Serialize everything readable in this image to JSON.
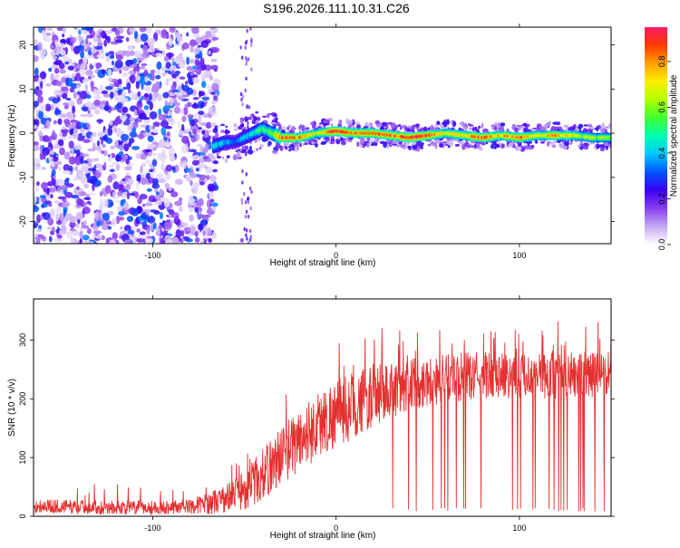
{
  "title": "S196.2026.111.10.31.C26",
  "chart_data": [
    {
      "type": "heatmap",
      "name": "spectrogram",
      "title": "S196.2026.111.10.31.C26",
      "xlabel": "Height of straight line (km)",
      "ylabel": "Frequency (Hz)",
      "xlim": [
        -165,
        150
      ],
      "ylim": [
        -25,
        24
      ],
      "xticks": [
        -100,
        0,
        100
      ],
      "yticks": [
        -20,
        -10,
        0,
        10,
        20
      ],
      "colorbar": {
        "label": "Normalized spectral amplitude",
        "range": [
          0,
          0.95
        ],
        "ticks": [
          0.0,
          0.2,
          0.4,
          0.6,
          0.8
        ],
        "colors": [
          "#ffffff",
          "#c6a8f2",
          "#8a3ff0",
          "#3b00f5",
          "#0055ff",
          "#00c8ff",
          "#00ffb0",
          "#40ff30",
          "#b0ff00",
          "#ffee00",
          "#ffa000",
          "#ff3a00",
          "#ff1a6a"
        ]
      },
      "noise_region_x": [
        -165,
        -67
      ],
      "ridge": {
        "description": "dominant frequency ridge (Hz) vs height (km)",
        "x": [
          -67,
          -60,
          -55,
          -50,
          -45,
          -40,
          -35,
          -30,
          -20,
          -10,
          0,
          10,
          20,
          30,
          40,
          50,
          60,
          70,
          80,
          90,
          100,
          110,
          120,
          130,
          140,
          150
        ],
        "y": [
          -3,
          -2,
          -2,
          -1,
          0,
          1,
          0,
          -1,
          -1,
          0,
          0.5,
          0,
          0,
          -0.5,
          -1,
          -0.5,
          0,
          -0.5,
          -1,
          -0.5,
          -1,
          -0.5,
          -0.5,
          -0.5,
          -1,
          -1
        ],
        "amplitude": [
          0.45,
          0.4,
          0.35,
          0.4,
          0.5,
          0.55,
          0.6,
          0.9,
          0.85,
          0.7,
          0.95,
          0.9,
          0.92,
          0.88,
          0.93,
          0.95,
          0.7,
          0.8,
          0.9,
          0.75,
          0.92,
          0.7,
          0.85,
          0.7,
          0.65,
          0.6
        ]
      }
    },
    {
      "type": "line",
      "name": "snr",
      "xlabel": "Height of straight line (km)",
      "ylabel": "SNR (10 * v/v)",
      "xlim": [
        -165,
        150
      ],
      "ylim": [
        0,
        370
      ],
      "xticks": [
        -100,
        0,
        100
      ],
      "yticks": [
        0,
        100,
        200,
        300
      ],
      "color": "#e53030",
      "trend": {
        "x": [
          -165,
          -140,
          -120,
          -100,
          -80,
          -70,
          -60,
          -50,
          -40,
          -30,
          -20,
          -10,
          0,
          10,
          20,
          30,
          40,
          60,
          80,
          100,
          120,
          150
        ],
        "y": [
          18,
          16,
          15,
          15,
          17,
          22,
          30,
          45,
          70,
          105,
          130,
          155,
          175,
          190,
          205,
          215,
          225,
          235,
          240,
          240,
          240,
          240
        ]
      },
      "spread": {
        "x": [
          -165,
          -80,
          -60,
          -40,
          -20,
          0,
          20,
          40,
          80,
          150
        ],
        "y": [
          12,
          12,
          25,
          45,
          55,
          60,
          55,
          45,
          40,
          40
        ]
      }
    }
  ]
}
